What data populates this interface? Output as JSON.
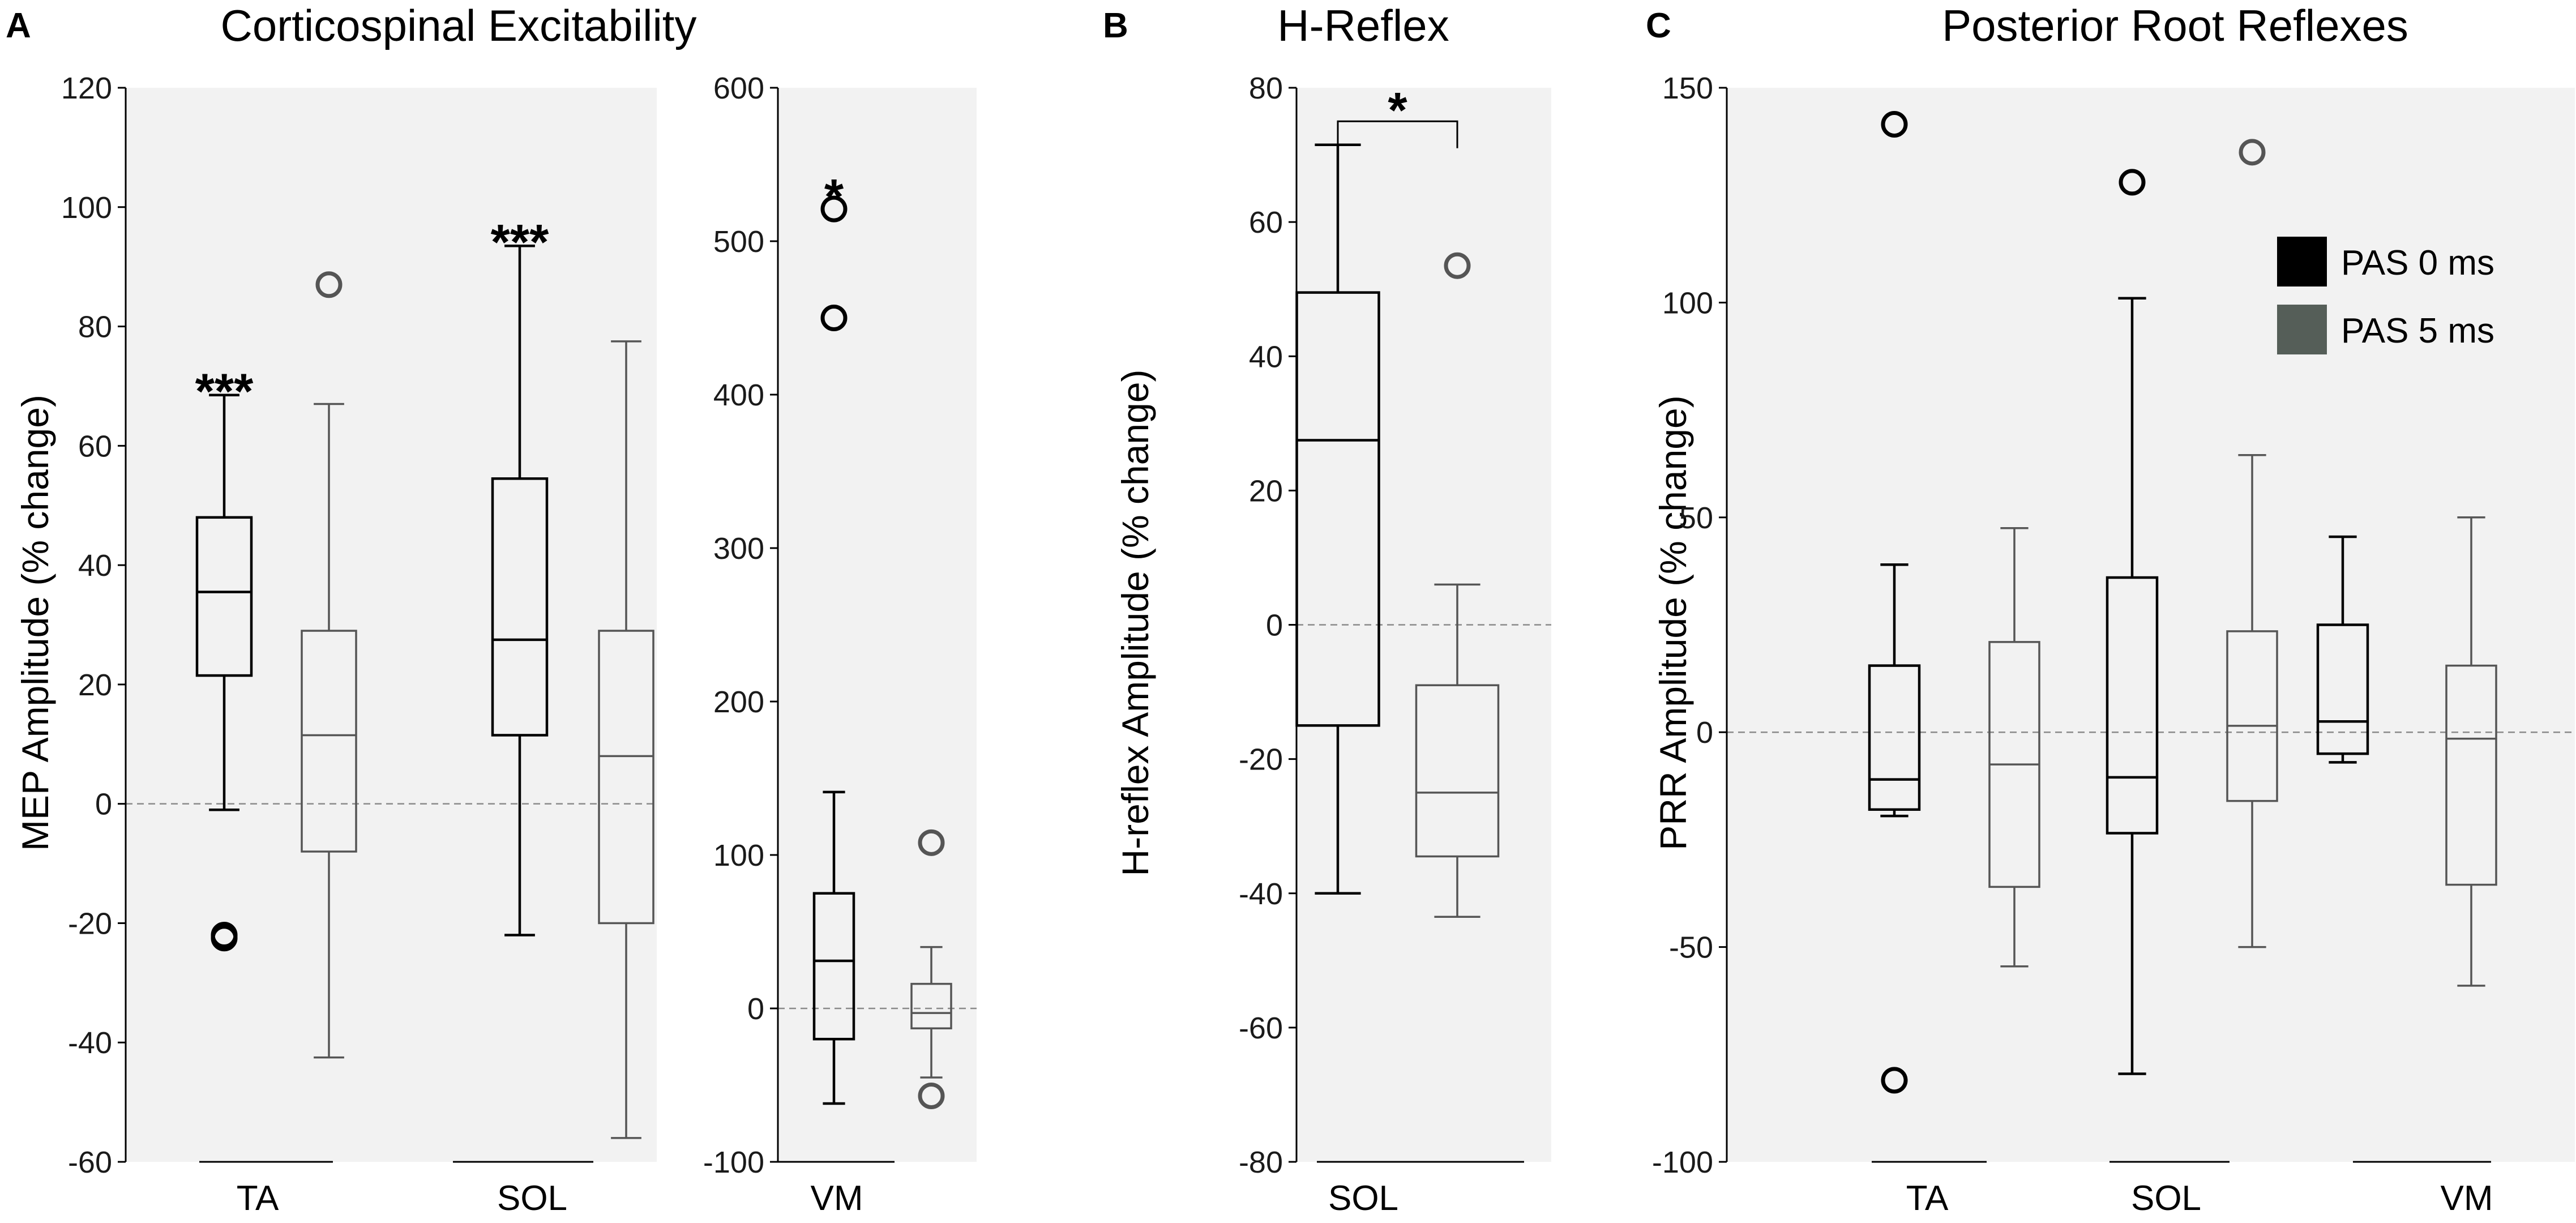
{
  "legend": {
    "entries": [
      {
        "label": "PAS 0 ms",
        "color": "#000000"
      },
      {
        "label": "PAS 5 ms",
        "color": "#555e58"
      }
    ]
  },
  "colors": {
    "pas0": "#000000",
    "pas5": "#555555",
    "pas5_legend": "#555e58",
    "background": "#f2f2f2",
    "zero_line": "#8a8a8a"
  },
  "chart_data": [
    {
      "type": "box",
      "panel_letter": "A",
      "title": "Corticospinal Excitability",
      "ylabel": "MEP Amplitude (% change)",
      "ylim": [
        -60,
        120
      ],
      "yticks": [
        "120",
        "100",
        "80",
        "60",
        "40",
        "20",
        "0",
        "-20",
        "-40",
        "-60"
      ],
      "categories": [
        "TA",
        "SOL"
      ],
      "boxes": [
        {
          "category": "TA",
          "series": "PAS 0 ms",
          "whisker_low": -1,
          "q1": 21.5,
          "median": 35.5,
          "q3": 48,
          "whisker_high": 68.5,
          "outliers": [
            -22,
            -22.5
          ]
        },
        {
          "category": "TA",
          "series": "PAS 5 ms",
          "whisker_low": -42.5,
          "q1": -8,
          "median": 11.5,
          "q3": 29,
          "whisker_high": 67,
          "outliers": [
            87
          ]
        },
        {
          "category": "SOL",
          "series": "PAS 0 ms",
          "whisker_low": -22,
          "q1": 11.5,
          "median": 27.5,
          "q3": 54.5,
          "whisker_high": 93.5,
          "outliers": []
        },
        {
          "category": "SOL",
          "series": "PAS 5 ms",
          "whisker_low": -56,
          "q1": -20,
          "median": 8,
          "q3": 29,
          "whisker_high": 77.5,
          "outliers": []
        }
      ],
      "annotations": [
        {
          "text": "***",
          "category": "TA",
          "y": 72
        },
        {
          "text": "***",
          "category": "SOL",
          "y": 97
        }
      ]
    },
    {
      "type": "box",
      "panel_letter": "",
      "title": "",
      "ylabel": "",
      "ylim": [
        -100,
        600
      ],
      "yticks": [
        "600",
        "500",
        "400",
        "300",
        "200",
        "100",
        "0",
        "-100"
      ],
      "categories": [
        "VM"
      ],
      "boxes": [
        {
          "category": "VM",
          "series": "PAS 0 ms",
          "whisker_low": -62,
          "q1": -20,
          "median": 31,
          "q3": 75,
          "whisker_high": 141,
          "outliers": [
            450,
            521
          ]
        },
        {
          "category": "VM",
          "series": "PAS 5 ms",
          "whisker_low": -45,
          "q1": -13,
          "median": -3,
          "q3": 16,
          "whisker_high": 40,
          "outliers": [
            108,
            -57
          ]
        }
      ],
      "annotations": [
        {
          "text": "*",
          "category": "VM",
          "y": 540
        }
      ]
    },
    {
      "type": "box",
      "panel_letter": "B",
      "title": "H-Reflex",
      "ylabel": "H-reflex Amplitude (% change)",
      "ylim": [
        -80,
        80
      ],
      "yticks": [
        "80",
        "60",
        "40",
        "20",
        "0",
        "-20",
        "-40",
        "-60",
        "-80"
      ],
      "categories": [
        "SOL"
      ],
      "boxes": [
        {
          "category": "SOL",
          "series": "PAS 0 ms",
          "whisker_low": -40,
          "q1": -15,
          "median": 27.5,
          "q3": 49.5,
          "whisker_high": 71.5,
          "outliers": []
        },
        {
          "category": "SOL",
          "series": "PAS 5 ms",
          "whisker_low": -43.5,
          "q1": -34.5,
          "median": -25,
          "q3": -9,
          "whisker_high": 6,
          "outliers": [
            53.5
          ]
        }
      ],
      "annotations": [
        {
          "text": "*",
          "category": "SOL",
          "y": 75,
          "bracket": [
            71,
            75
          ]
        }
      ]
    },
    {
      "type": "box",
      "panel_letter": "C",
      "title": "Posterior Root Reflexes",
      "ylabel": "PRR Amplitude (% change)",
      "ylim": [
        -100,
        150
      ],
      "yticks": [
        "150",
        "100",
        "50",
        "0",
        "-50",
        "-100"
      ],
      "categories": [
        "TA",
        "SOL",
        "VM"
      ],
      "boxes": [
        {
          "category": "TA",
          "series": "PAS 0 ms",
          "whisker_low": -19.5,
          "q1": -18,
          "median": -11,
          "q3": 15.5,
          "whisker_high": 39,
          "outliers": [
            141.5,
            -81
          ]
        },
        {
          "category": "TA",
          "series": "PAS 5 ms",
          "whisker_low": -54.5,
          "q1": -36,
          "median": -7.5,
          "q3": 21,
          "whisker_high": 47.5,
          "outliers": []
        },
        {
          "category": "SOL",
          "series": "PAS 0 ms",
          "whisker_low": -79.5,
          "q1": -23.5,
          "median": -10.5,
          "q3": 36,
          "whisker_high": 101,
          "outliers": [
            128
          ]
        },
        {
          "category": "SOL",
          "series": "PAS 5 ms",
          "whisker_low": -50,
          "q1": -16,
          "median": 1.5,
          "q3": 23.5,
          "whisker_high": 64.5,
          "outliers": [
            135
          ]
        },
        {
          "category": "VM",
          "series": "PAS 0 ms",
          "whisker_low": -7,
          "q1": -5,
          "median": 2.5,
          "q3": 25,
          "whisker_high": 45.5,
          "outliers": []
        },
        {
          "category": "VM",
          "series": "PAS 5 ms",
          "whisker_low": -59,
          "q1": -35.5,
          "median": -1.5,
          "q3": 15.5,
          "whisker_high": 50,
          "outliers": []
        }
      ],
      "annotations": []
    }
  ]
}
